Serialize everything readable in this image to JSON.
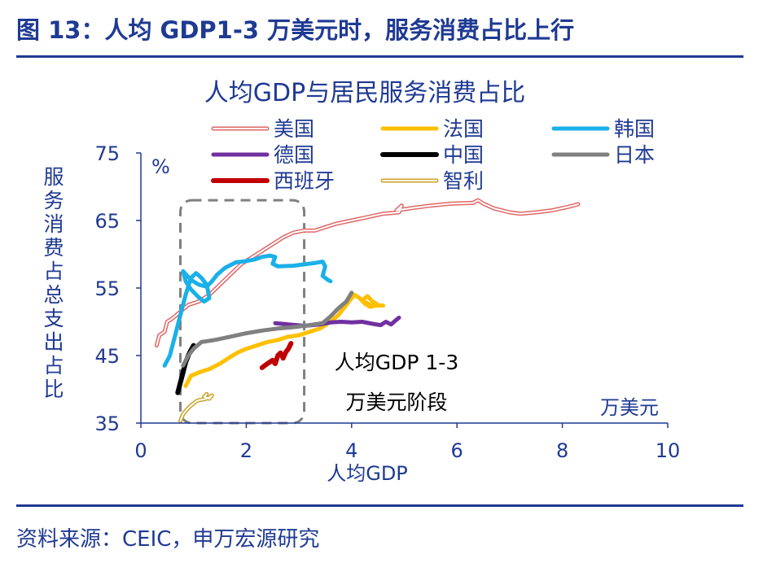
{
  "figure": {
    "title": "图 13：人均 GDP1-3 万美元时，服务消费占比上行",
    "source": "资料来源：CEIC，申万宏源研究"
  },
  "chart_data": {
    "type": "line",
    "title": "人均GDP与居民服务消费占比",
    "xlabel": "人均GDP",
    "ylabel": "服务消费占总支出占比",
    "x_unit": "万美元",
    "y_unit": "%",
    "xlim": [
      0,
      10
    ],
    "ylim": [
      35,
      75
    ],
    "x_ticks": [
      0,
      2,
      4,
      6,
      8,
      10
    ],
    "y_ticks": [
      35,
      45,
      55,
      65,
      75
    ],
    "grid": false,
    "legend_position": "top",
    "highlight_box": {
      "x": [
        0.75,
        3.1
      ],
      "y": [
        35,
        68
      ],
      "label_line1": "人均GDP 1-3",
      "label_line2": "万美元阶段"
    },
    "series": [
      {
        "name": "美国",
        "color": "#e06666",
        "style": "double",
        "points": [
          [
            0.3,
            46.5
          ],
          [
            0.35,
            48
          ],
          [
            0.45,
            48.5
          ],
          [
            0.5,
            50
          ],
          [
            0.6,
            50.5
          ],
          [
            0.75,
            51.5
          ],
          [
            0.9,
            52.5
          ],
          [
            1.1,
            53
          ],
          [
            1.3,
            54
          ],
          [
            1.5,
            55.5
          ],
          [
            1.7,
            57
          ],
          [
            1.9,
            58.5
          ],
          [
            2.1,
            59.5
          ],
          [
            2.3,
            60.5
          ],
          [
            2.5,
            61.5
          ],
          [
            2.7,
            62.5
          ],
          [
            2.9,
            63.2
          ],
          [
            3.1,
            63.5
          ],
          [
            3.3,
            63.5
          ],
          [
            3.5,
            64
          ],
          [
            3.7,
            64.5
          ],
          [
            4.0,
            65
          ],
          [
            4.3,
            65.5
          ],
          [
            4.6,
            66
          ],
          [
            4.9,
            66.2
          ],
          [
            4.95,
            67.2
          ],
          [
            4.85,
            66.5
          ],
          [
            5.1,
            66.8
          ],
          [
            5.5,
            67.2
          ],
          [
            5.9,
            67.5
          ],
          [
            6.3,
            67.6
          ],
          [
            6.4,
            68.0
          ],
          [
            6.5,
            67.5
          ],
          [
            6.7,
            66.8
          ],
          [
            7.0,
            66.2
          ],
          [
            7.2,
            66.0
          ],
          [
            7.5,
            66.2
          ],
          [
            7.8,
            66.5
          ],
          [
            8.1,
            67.0
          ],
          [
            8.3,
            67.4
          ]
        ]
      },
      {
        "name": "法国",
        "color": "#ffc000",
        "style": "solid",
        "points": [
          [
            0.85,
            40.5
          ],
          [
            0.95,
            42
          ],
          [
            1.1,
            42.5
          ],
          [
            1.3,
            43
          ],
          [
            1.5,
            43.8
          ],
          [
            1.7,
            44.8
          ],
          [
            1.85,
            45.5
          ],
          [
            2.0,
            46
          ],
          [
            2.2,
            46.5
          ],
          [
            2.4,
            47
          ],
          [
            2.6,
            47.3
          ],
          [
            2.8,
            47.8
          ],
          [
            3.0,
            48
          ],
          [
            3.2,
            48.5
          ],
          [
            3.4,
            49
          ],
          [
            3.6,
            50
          ],
          [
            3.75,
            51
          ],
          [
            3.9,
            52.5
          ],
          [
            4.05,
            54
          ],
          [
            4.15,
            53.5
          ],
          [
            4.25,
            52.7
          ],
          [
            4.35,
            52.2
          ],
          [
            4.5,
            52.5
          ],
          [
            4.4,
            53.0
          ],
          [
            4.3,
            53.8
          ],
          [
            4.2,
            53.2
          ],
          [
            4.35,
            52.5
          ],
          [
            4.6,
            52.4
          ]
        ]
      },
      {
        "name": "韩国",
        "color": "#1ab0e8",
        "style": "solid",
        "points": [
          [
            0.45,
            43.5
          ],
          [
            0.55,
            45
          ],
          [
            0.65,
            48
          ],
          [
            0.75,
            51
          ],
          [
            0.85,
            54
          ],
          [
            0.95,
            56.5
          ],
          [
            1.05,
            57.2
          ],
          [
            1.15,
            56.5
          ],
          [
            1.25,
            55.5
          ],
          [
            1.3,
            53.5
          ],
          [
            1.2,
            53.0
          ],
          [
            1.1,
            53.6
          ],
          [
            0.95,
            54.8
          ],
          [
            0.85,
            56.0
          ],
          [
            0.8,
            57.5
          ],
          [
            0.95,
            56.2
          ],
          [
            1.1,
            55.5
          ],
          [
            1.25,
            55.2
          ],
          [
            1.35,
            56.0
          ],
          [
            1.45,
            57.0
          ],
          [
            1.6,
            58.0
          ],
          [
            1.8,
            58.8
          ],
          [
            2.0,
            59.0
          ],
          [
            2.15,
            59.2
          ],
          [
            2.3,
            59.6
          ],
          [
            2.45,
            59.8
          ],
          [
            2.55,
            59.6
          ],
          [
            2.5,
            58.6
          ],
          [
            2.6,
            58.2
          ],
          [
            2.9,
            58.3
          ],
          [
            3.1,
            58.5
          ],
          [
            3.3,
            58.7
          ],
          [
            3.45,
            58.9
          ],
          [
            3.5,
            58.2
          ],
          [
            3.45,
            56.8
          ],
          [
            3.55,
            56.2
          ],
          [
            3.6,
            56.0
          ]
        ]
      },
      {
        "name": "德国",
        "color": "#7030a0",
        "style": "solid",
        "points": [
          [
            2.55,
            49.8
          ],
          [
            2.8,
            49.6
          ],
          [
            3.1,
            49.4
          ],
          [
            3.4,
            49.6
          ],
          [
            3.6,
            49.9
          ],
          [
            3.8,
            50.0
          ],
          [
            4.0,
            49.9
          ],
          [
            4.2,
            50.0
          ],
          [
            4.4,
            49.7
          ],
          [
            4.55,
            49.5
          ],
          [
            4.65,
            50.0
          ],
          [
            4.75,
            49.6
          ],
          [
            4.85,
            50.3
          ],
          [
            4.9,
            50.6
          ]
        ]
      },
      {
        "name": "中国",
        "color": "#000000",
        "style": "solid",
        "points": [
          [
            0.7,
            39.5
          ],
          [
            0.75,
            41
          ],
          [
            0.8,
            42.5
          ],
          [
            0.85,
            44
          ],
          [
            0.9,
            45
          ],
          [
            0.95,
            45.8
          ],
          [
            1.0,
            46.5
          ]
        ]
      },
      {
        "name": "日本",
        "color": "#808080",
        "style": "solid",
        "points": [
          [
            0.8,
            43.5
          ],
          [
            0.9,
            45
          ],
          [
            1.0,
            46
          ],
          [
            1.15,
            47
          ],
          [
            1.4,
            47.3
          ],
          [
            1.7,
            47.8
          ],
          [
            2.0,
            48.3
          ],
          [
            2.3,
            48.7
          ],
          [
            2.6,
            49.0
          ],
          [
            2.9,
            49.2
          ],
          [
            3.2,
            49.5
          ],
          [
            3.45,
            49.8
          ],
          [
            3.6,
            50.8
          ],
          [
            3.75,
            52.0
          ],
          [
            3.9,
            53.0
          ],
          [
            4.0,
            54.3
          ]
        ]
      },
      {
        "name": "西班牙",
        "color": "#c00000",
        "style": "solid",
        "points": [
          [
            2.3,
            43.2
          ],
          [
            2.4,
            43.8
          ],
          [
            2.5,
            44.3
          ],
          [
            2.55,
            43.8
          ],
          [
            2.6,
            45.0
          ],
          [
            2.65,
            45.4
          ],
          [
            2.7,
            44.6
          ],
          [
            2.75,
            45.5
          ],
          [
            2.8,
            46.0
          ],
          [
            2.85,
            46.8
          ]
        ]
      },
      {
        "name": "智利",
        "color": "#c9a227",
        "style": "double",
        "points": [
          [
            0.75,
            35.3
          ],
          [
            0.8,
            36.3
          ],
          [
            0.85,
            36.8
          ],
          [
            0.9,
            37.2
          ],
          [
            0.95,
            37.6
          ],
          [
            1.0,
            37.9
          ],
          [
            1.05,
            38.2
          ],
          [
            1.1,
            38.4
          ],
          [
            1.2,
            38.5
          ],
          [
            1.3,
            38.8
          ],
          [
            1.35,
            39.1
          ],
          [
            1.3,
            38.6
          ],
          [
            1.2,
            38.9
          ],
          [
            1.25,
            39.3
          ]
        ]
      }
    ]
  }
}
